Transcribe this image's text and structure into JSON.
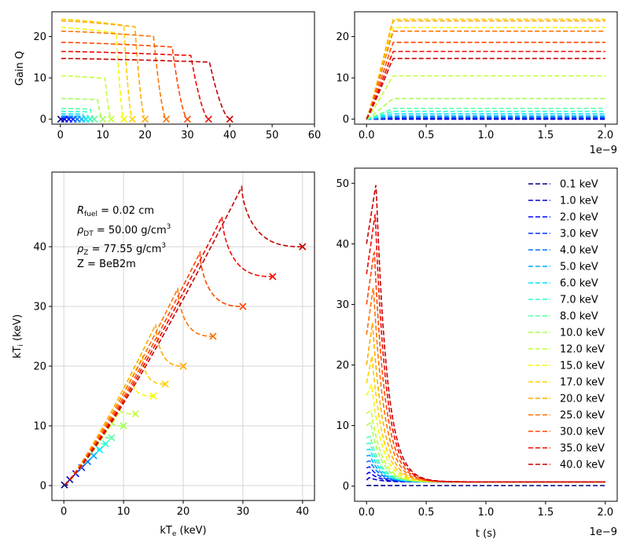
{
  "chart_data": {
    "type": "line",
    "series": [
      {
        "name": "0.1 keV",
        "kTe": 0.1,
        "color": "#00007f",
        "gain_max": 0.0,
        "ti_peak": 0.12
      },
      {
        "name": "1.0 keV",
        "kTe": 1.0,
        "color": "#0000c5",
        "gain_max": 0.05,
        "ti_peak": 1.4
      },
      {
        "name": "2.0 keV",
        "kTe": 2.0,
        "color": "#0000ff",
        "gain_max": 0.15,
        "ti_peak": 2.3
      },
      {
        "name": "3.0 keV",
        "kTe": 3.0,
        "color": "#0030ff",
        "gain_max": 0.3,
        "ti_peak": 3.2
      },
      {
        "name": "4.0 keV",
        "kTe": 4.0,
        "color": "#0074ff",
        "gain_max": 0.5,
        "ti_peak": 4.2
      },
      {
        "name": "5.0 keV",
        "kTe": 5.0,
        "color": "#00acff",
        "gain_max": 0.8,
        "ti_peak": 5.1
      },
      {
        "name": "6.0 keV",
        "kTe": 6.0,
        "color": "#00e4f8",
        "gain_max": 1.3,
        "ti_peak": 6.1
      },
      {
        "name": "7.0 keV",
        "kTe": 7.0,
        "color": "#29ffce",
        "gain_max": 1.9,
        "ti_peak": 7.1
      },
      {
        "name": "8.0 keV",
        "kTe": 8.0,
        "color": "#53ffa4",
        "gain_max": 2.6,
        "ti_peak": 8.2
      },
      {
        "name": "10.0 keV",
        "kTe": 10.0,
        "color": "#a4ff53",
        "gain_max": 5.0,
        "ti_peak": 10.5
      },
      {
        "name": "12.0 keV",
        "kTe": 12.0,
        "color": "#c1ff36",
        "gain_max": 10.5,
        "ti_peak": 12.5
      },
      {
        "name": "15.0 keV",
        "kTe": 15.0,
        "color": "#f4f802",
        "gain_max": 22.2,
        "ti_peak": 16.8
      },
      {
        "name": "17.0 keV",
        "kTe": 17.0,
        "color": "#ffd000",
        "gain_max": 24.2,
        "ti_peak": 21.5
      },
      {
        "name": "20.0 keV",
        "kTe": 20.0,
        "color": "#ffab00",
        "gain_max": 23.8,
        "ti_peak": 27.0
      },
      {
        "name": "25.0 keV",
        "kTe": 25.0,
        "color": "#ff7300",
        "gain_max": 21.3,
        "ti_peak": 33.0
      },
      {
        "name": "30.0 keV",
        "kTe": 30.0,
        "color": "#ff4800",
        "gain_max": 18.6,
        "ti_peak": 39.0
      },
      {
        "name": "35.0 keV",
        "kTe": 35.0,
        "color": "#f10800",
        "gain_max": 16.4,
        "ti_peak": 45.0
      },
      {
        "name": "40.0 keV",
        "kTe": 40.0,
        "color": "#c60000",
        "gain_max": 14.7,
        "ti_peak": 50.0
      }
    ],
    "panels": {
      "gain_vs_kte": {
        "ylabel": "Gain Q",
        "xlim": [
          -2,
          60
        ],
        "ylim": [
          -1.2,
          26
        ],
        "xticks": [
          "0",
          "10",
          "20",
          "30",
          "40",
          "50",
          "60"
        ],
        "xtick_values": [
          0,
          10,
          20,
          30,
          40,
          50,
          60
        ],
        "yticks": [
          "0",
          "10",
          "20"
        ],
        "ytick_values": [
          0,
          10,
          20
        ]
      },
      "gain_vs_t": {
        "xlim": [
          -1e-10,
          2.1e-09
        ],
        "ylim": [
          -1.2,
          26
        ],
        "xticks": [
          "0.0",
          "0.5",
          "1.0",
          "1.5",
          "2.0"
        ],
        "xtick_values": [
          0,
          0.5,
          1.0,
          1.5,
          2.0
        ],
        "yticks": [
          "0",
          "10",
          "20"
        ],
        "ytick_values": [
          0,
          10,
          20
        ],
        "offset": "1e−9"
      },
      "kti_vs_kte": {
        "xlabel": "kT",
        "xlabel_sub": "e",
        "xlabel_unit": " (keV)",
        "ylabel": "kT",
        "ylabel_sub": "i",
        "ylabel_unit": " (keV)",
        "xlim": [
          -2,
          42
        ],
        "ylim": [
          -2.5,
          52.5
        ],
        "xticks": [
          "0",
          "10",
          "20",
          "30",
          "40"
        ],
        "xtick_values": [
          0,
          10,
          20,
          30,
          40
        ],
        "yticks": [
          "0",
          "10",
          "20",
          "30",
          "40"
        ],
        "ytick_values": [
          0,
          10,
          20,
          30,
          40
        ],
        "grid": true
      },
      "kti_vs_t": {
        "xlabel": "t (s)",
        "xlim": [
          -1e-10,
          2.1e-09
        ],
        "ylim": [
          -2.5,
          52.5
        ],
        "xticks": [
          "0.0",
          "0.5",
          "1.0",
          "1.5",
          "2.0"
        ],
        "xtick_values": [
          0,
          0.5,
          1.0,
          1.5,
          2.0
        ],
        "yticks": [
          "0",
          "10",
          "20",
          "30",
          "40",
          "50"
        ],
        "ytick_values": [
          0,
          10,
          20,
          30,
          40,
          50
        ],
        "offset": "1e−9",
        "legend_position": "top-right"
      }
    },
    "annotation": {
      "rfuel_sym": "R",
      "rfuel_sub": "fuel",
      "rfuel_val": " = 0.02 cm",
      "rhodt_sym": "ρ",
      "rhodt_sub": "DT",
      "rhodt_val": " = 50.00 g/cm",
      "rhodt_sup": "3",
      "rhoz_sym": "ρ",
      "rhoz_sub": "Z",
      "rhoz_val": " = 77.55 g/cm",
      "rhoz_sup": "3",
      "z_line": "Z = BeB2m"
    }
  }
}
